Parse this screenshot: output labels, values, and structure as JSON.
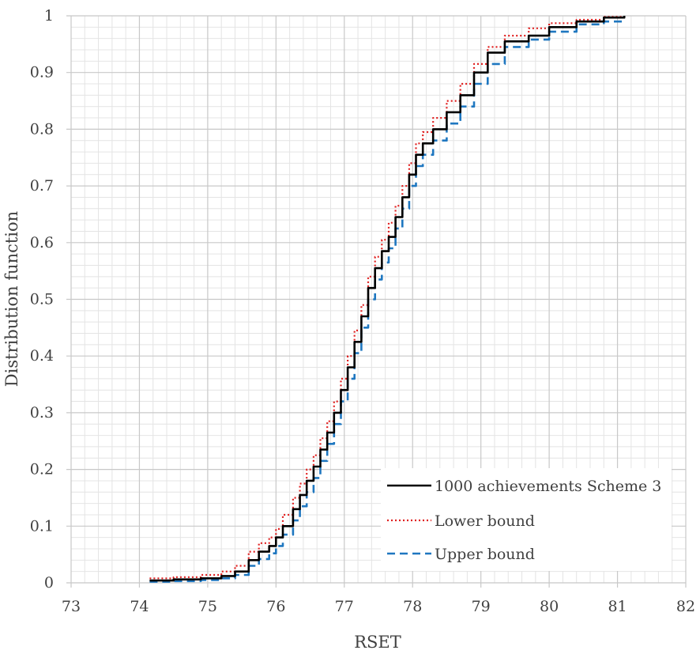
{
  "chart_data": {
    "type": "line",
    "title": "",
    "xlabel": "RSET",
    "ylabel": "Distribution function",
    "xlim": [
      73,
      82
    ],
    "ylim": [
      0,
      1
    ],
    "x_ticks": [
      "73",
      "74",
      "75",
      "76",
      "77",
      "78",
      "79",
      "80",
      "81",
      "82"
    ],
    "y_ticks": [
      "0",
      "0.1",
      "0.2",
      "0.3",
      "0.4",
      "0.5",
      "0.6",
      "0.7",
      "0.8",
      "0.9",
      "1"
    ],
    "grid": "major and minor",
    "legend_position": "bottom-right",
    "series": [
      {
        "name": "1000 achievements Scheme 3",
        "color": "#000000",
        "style": "solid",
        "points": [
          [
            74.15,
            0.004
          ],
          [
            74.5,
            0.006
          ],
          [
            74.9,
            0.008
          ],
          [
            75.2,
            0.012
          ],
          [
            75.4,
            0.02
          ],
          [
            75.6,
            0.04
          ],
          [
            75.75,
            0.055
          ],
          [
            75.9,
            0.065
          ],
          [
            76.0,
            0.08
          ],
          [
            76.1,
            0.1
          ],
          [
            76.25,
            0.13
          ],
          [
            76.35,
            0.155
          ],
          [
            76.45,
            0.18
          ],
          [
            76.55,
            0.205
          ],
          [
            76.65,
            0.235
          ],
          [
            76.75,
            0.265
          ],
          [
            76.85,
            0.3
          ],
          [
            76.95,
            0.34
          ],
          [
            77.05,
            0.38
          ],
          [
            77.15,
            0.425
          ],
          [
            77.25,
            0.47
          ],
          [
            77.35,
            0.52
          ],
          [
            77.45,
            0.555
          ],
          [
            77.55,
            0.585
          ],
          [
            77.65,
            0.61
          ],
          [
            77.75,
            0.645
          ],
          [
            77.85,
            0.68
          ],
          [
            77.95,
            0.72
          ],
          [
            78.05,
            0.755
          ],
          [
            78.15,
            0.775
          ],
          [
            78.3,
            0.8
          ],
          [
            78.5,
            0.83
          ],
          [
            78.7,
            0.86
          ],
          [
            78.9,
            0.9
          ],
          [
            79.1,
            0.935
          ],
          [
            79.35,
            0.955
          ],
          [
            79.7,
            0.965
          ],
          [
            80.0,
            0.98
          ],
          [
            80.4,
            0.99
          ],
          [
            80.8,
            0.997
          ],
          [
            81.1,
            1.0
          ]
        ]
      },
      {
        "name": "Lower bound",
        "color": "#e02020",
        "style": "dotted",
        "points": [
          [
            74.15,
            0.008
          ],
          [
            74.5,
            0.01
          ],
          [
            74.9,
            0.014
          ],
          [
            75.2,
            0.02
          ],
          [
            75.4,
            0.03
          ],
          [
            75.6,
            0.055
          ],
          [
            75.75,
            0.07
          ],
          [
            75.9,
            0.08
          ],
          [
            76.0,
            0.095
          ],
          [
            76.1,
            0.12
          ],
          [
            76.25,
            0.15
          ],
          [
            76.35,
            0.175
          ],
          [
            76.45,
            0.2
          ],
          [
            76.55,
            0.225
          ],
          [
            76.65,
            0.255
          ],
          [
            76.75,
            0.285
          ],
          [
            76.85,
            0.32
          ],
          [
            76.95,
            0.36
          ],
          [
            77.05,
            0.4
          ],
          [
            77.15,
            0.445
          ],
          [
            77.25,
            0.49
          ],
          [
            77.35,
            0.54
          ],
          [
            77.45,
            0.575
          ],
          [
            77.55,
            0.605
          ],
          [
            77.65,
            0.635
          ],
          [
            77.75,
            0.665
          ],
          [
            77.85,
            0.7
          ],
          [
            77.95,
            0.74
          ],
          [
            78.05,
            0.775
          ],
          [
            78.15,
            0.795
          ],
          [
            78.3,
            0.82
          ],
          [
            78.5,
            0.85
          ],
          [
            78.7,
            0.88
          ],
          [
            78.9,
            0.915
          ],
          [
            79.1,
            0.945
          ],
          [
            79.35,
            0.965
          ],
          [
            79.7,
            0.978
          ],
          [
            80.0,
            0.987
          ],
          [
            80.4,
            0.993
          ],
          [
            80.8,
            0.998
          ],
          [
            81.1,
            1.0
          ]
        ]
      },
      {
        "name": "Upper bound",
        "color": "#1f77c0",
        "style": "dashed",
        "points": [
          [
            74.15,
            0.002
          ],
          [
            74.5,
            0.003
          ],
          [
            74.9,
            0.005
          ],
          [
            75.2,
            0.008
          ],
          [
            75.4,
            0.014
          ],
          [
            75.6,
            0.03
          ],
          [
            75.75,
            0.042
          ],
          [
            75.9,
            0.052
          ],
          [
            76.0,
            0.065
          ],
          [
            76.1,
            0.085
          ],
          [
            76.25,
            0.11
          ],
          [
            76.35,
            0.135
          ],
          [
            76.45,
            0.16
          ],
          [
            76.55,
            0.185
          ],
          [
            76.65,
            0.215
          ],
          [
            76.75,
            0.245
          ],
          [
            76.85,
            0.28
          ],
          [
            76.95,
            0.32
          ],
          [
            77.05,
            0.36
          ],
          [
            77.15,
            0.405
          ],
          [
            77.25,
            0.45
          ],
          [
            77.35,
            0.5
          ],
          [
            77.45,
            0.535
          ],
          [
            77.55,
            0.565
          ],
          [
            77.65,
            0.59
          ],
          [
            77.75,
            0.625
          ],
          [
            77.85,
            0.66
          ],
          [
            77.95,
            0.7
          ],
          [
            78.05,
            0.735
          ],
          [
            78.15,
            0.755
          ],
          [
            78.3,
            0.78
          ],
          [
            78.5,
            0.81
          ],
          [
            78.7,
            0.84
          ],
          [
            78.9,
            0.88
          ],
          [
            79.1,
            0.915
          ],
          [
            79.35,
            0.945
          ],
          [
            79.7,
            0.958
          ],
          [
            80.0,
            0.972
          ],
          [
            80.4,
            0.985
          ],
          [
            80.8,
            0.99
          ],
          [
            81.1,
            0.993
          ]
        ]
      }
    ]
  }
}
